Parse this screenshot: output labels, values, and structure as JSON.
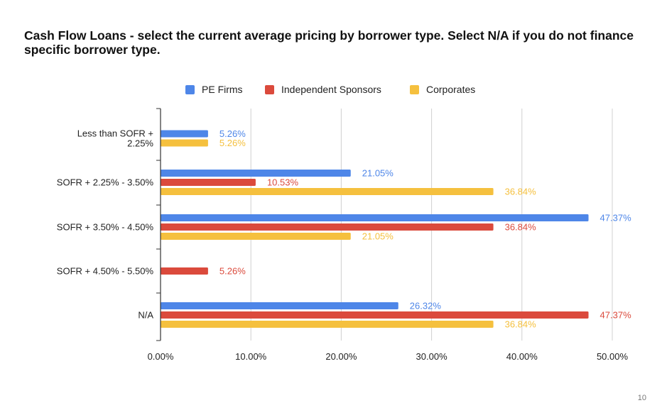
{
  "title": "Cash Flow Loans - select the current average pricing by borrower type. Select N/A if you do not finance specific borrower type.",
  "page_number": "10",
  "chart_data": {
    "type": "bar",
    "orientation": "horizontal",
    "categories": [
      "Less than SOFR + 2.25%",
      "SOFR + 2.25% - 3.50%",
      "SOFR + 3.50% - 4.50%",
      "SOFR + 4.50% - 5.50%",
      "N/A"
    ],
    "category_label_lines": [
      [
        "Less than SOFR +",
        "2.25%"
      ],
      [
        "SOFR + 2.25% - 3.50%"
      ],
      [
        "SOFR + 3.50% - 4.50%"
      ],
      [
        "SOFR + 4.50% - 5.50%"
      ],
      [
        "N/A"
      ]
    ],
    "series": [
      {
        "name": "PE Firms",
        "color": "#4e86e8",
        "values": [
          5.26,
          21.05,
          47.37,
          null,
          26.32
        ],
        "labels": [
          "5.26%",
          "21.05%",
          "47.37%",
          "",
          "26.32%"
        ]
      },
      {
        "name": "Independent Sponsors",
        "color": "#db4a3c",
        "values": [
          null,
          10.53,
          36.84,
          5.26,
          47.37
        ],
        "labels": [
          "",
          "10.53%",
          "36.84%",
          "5.26%",
          "47.37%"
        ]
      },
      {
        "name": "Corporates",
        "color": "#f5c03e",
        "values": [
          5.26,
          36.84,
          21.05,
          null,
          36.84
        ],
        "labels": [
          "5.26%",
          "36.84%",
          "21.05%",
          "",
          "36.84%"
        ]
      }
    ],
    "x_ticks": [
      0,
      10,
      20,
      30,
      40,
      50
    ],
    "x_tick_labels": [
      "0.00%",
      "10.00%",
      "20.00%",
      "30.00%",
      "40.00%",
      "50.00%"
    ],
    "xlim": [
      0,
      50
    ],
    "xlabel": "",
    "ylabel": "",
    "grid": "vertical",
    "legend_position": "top"
  }
}
